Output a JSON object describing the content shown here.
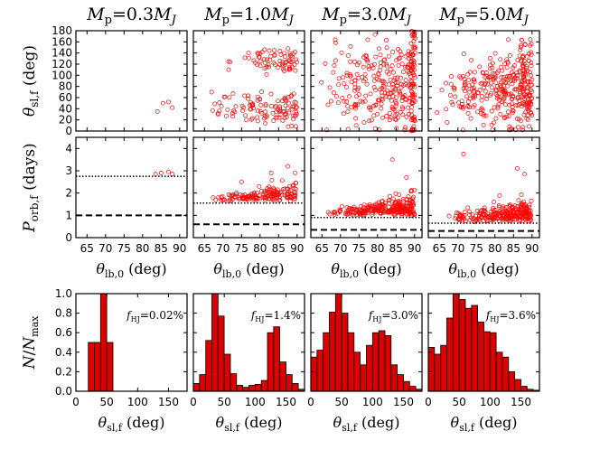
{
  "chart_data": {
    "type": "scatter",
    "description_note": "4 columns (planet mass) x 3 rows; rows 1-2 scatter plots, row 3 histograms",
    "columns": [
      {
        "title_pre": "M",
        "title_sub": "p",
        "title_mid": "=",
        "title_val": "0.3",
        "title_post": "M",
        "title_postsub": "J",
        "fhj": "0.02%"
      },
      {
        "title_pre": "M",
        "title_sub": "p",
        "title_mid": "=",
        "title_val": "1.0",
        "title_post": "M",
        "title_postsub": "J",
        "fhj": "1.4%"
      },
      {
        "title_pre": "M",
        "title_sub": "p",
        "title_mid": "=",
        "title_val": "3.0",
        "title_post": "M",
        "title_postsub": "J",
        "fhj": "3.0%"
      },
      {
        "title_pre": "M",
        "title_sub": "p",
        "title_mid": "=",
        "title_val": "5.0",
        "title_post": "M",
        "title_postsub": "J",
        "fhj": "3.6%"
      }
    ],
    "fhj_label": {
      "pre": "f",
      "sub": "HJ",
      "eq": "="
    },
    "row1": {
      "ylabel_main": "θ",
      "ylabel_sub": "sl,f",
      "ylabel_unit": "(deg)",
      "xlim": [
        62,
        92
      ],
      "ylim": [
        0,
        180
      ],
      "yticks": [
        "0",
        "20",
        "40",
        "60",
        "80",
        "100",
        "120",
        "140",
        "160",
        "180"
      ],
      "points": [
        [
          [
            84.0,
            35
          ],
          [
            85.5,
            50
          ],
          [
            87.0,
            52
          ],
          [
            88.0,
            42
          ]
        ],
        "generated",
        "generated",
        "generated"
      ]
    },
    "row2": {
      "ylabel_main": "P",
      "ylabel_sub": "orb,f",
      "ylabel_unit": "(days)",
      "xlim": [
        62,
        92
      ],
      "ylim": [
        0,
        4.5
      ],
      "yticks": [
        "0",
        "1",
        "2",
        "3",
        "4"
      ],
      "dotted_lines": [
        2.75,
        1.55,
        0.9,
        0.65
      ],
      "dashed_lines": [
        1.0,
        0.6,
        0.35,
        0.3
      ],
      "xticks": [
        "65",
        "70",
        "75",
        "80",
        "85",
        "90"
      ],
      "xlabel_main": "θ",
      "xlabel_sub": "lb,0",
      "xlabel_unit": "(deg)",
      "points": [
        [
          [
            83.5,
            2.85
          ],
          [
            85.0,
            2.9
          ],
          [
            87.0,
            2.95
          ],
          [
            88.0,
            2.85
          ]
        ],
        "generated",
        "generated",
        "generated"
      ]
    },
    "row3": {
      "type": "bar",
      "ylabel_main": "N",
      "ylabel_div": "/",
      "ylabel_main2": "N",
      "ylabel_sub": "max",
      "xlim": [
        0,
        180
      ],
      "ylim": [
        0,
        1.0
      ],
      "yticks": [
        "0.0",
        "0.2",
        "0.4",
        "0.6",
        "0.8",
        "1.0"
      ],
      "xticks": [
        "0",
        "50",
        "100",
        "150"
      ],
      "xlabel_main": "θ",
      "xlabel_sub": "sl,f",
      "xlabel_unit": "(deg)",
      "bin_width": 10,
      "bin_starts": [
        0,
        10,
        20,
        30,
        40,
        50,
        60,
        70,
        80,
        90,
        100,
        110,
        120,
        130,
        140,
        150,
        160,
        170
      ],
      "histograms": [
        [
          0,
          0,
          0.5,
          0.5,
          1.0,
          0.5,
          0,
          0,
          0,
          0,
          0,
          0,
          0,
          0,
          0,
          0,
          0,
          0
        ],
        [
          0.08,
          0.17,
          0.52,
          1.0,
          0.77,
          0.38,
          0.18,
          0.06,
          0.04,
          0.06,
          0.07,
          0.11,
          0.6,
          0.66,
          0.3,
          0.17,
          0.08,
          0.02
        ],
        [
          0.35,
          0.42,
          0.6,
          0.81,
          1.0,
          0.8,
          0.6,
          0.4,
          0.27,
          0.47,
          0.6,
          0.62,
          0.57,
          0.27,
          0.17,
          0.1,
          0.05,
          0.02
        ],
        [
          0.45,
          0.38,
          0.47,
          0.75,
          1.0,
          0.94,
          0.85,
          0.88,
          0.71,
          0.61,
          0.6,
          0.4,
          0.35,
          0.2,
          0.12,
          0.05,
          0.02,
          0.01
        ]
      ]
    },
    "marker_color": "#ff0000",
    "bar_color": "#dd0000"
  }
}
